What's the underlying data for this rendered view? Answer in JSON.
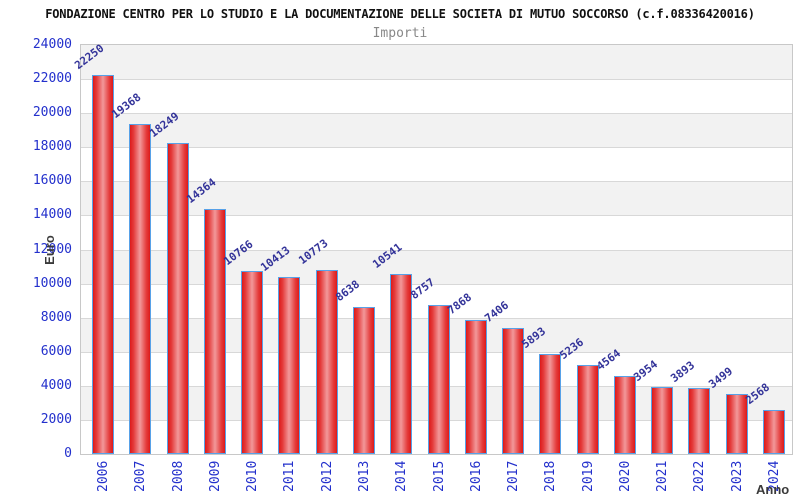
{
  "header": {
    "title": "FONDAZIONE CENTRO PER LO STUDIO E LA DOCUMENTAZIONE DELLE SOCIETA DI MUTUO SOCCORSO (c.f.08336420016)",
    "subtitle": "Importi"
  },
  "chart_data": {
    "type": "bar",
    "title": "Importi",
    "xlabel": "Anno",
    "ylabel": "Euro",
    "categories": [
      "2006",
      "2007",
      "2008",
      "2009",
      "2010",
      "2011",
      "2012",
      "2013",
      "2014",
      "2015",
      "2016",
      "2017",
      "2018",
      "2019",
      "2020",
      "2021",
      "2022",
      "2023",
      "2024"
    ],
    "values": [
      22250,
      19368,
      18249,
      14364,
      10766,
      10413,
      10773,
      8638,
      10541,
      8757,
      7868,
      7406,
      5893,
      5236,
      4564,
      3954,
      3893,
      3499,
      2568
    ],
    "ylim": [
      0,
      24000
    ],
    "ytick_step": 2000,
    "yticks": [
      0,
      2000,
      4000,
      6000,
      8000,
      10000,
      12000,
      14000,
      16000,
      18000,
      20000,
      22000,
      24000
    ],
    "grid": true,
    "legend": false,
    "value_labels": true,
    "bands": "alternating-horizontal",
    "colors": {
      "bar_edge": "#dd1a1a",
      "bar_center": "#f2989a",
      "bar_border": "#57a1e8",
      "tick_label": "#2330cc",
      "value_label": "#333399",
      "band": "#f2f2f2",
      "gridline": "#d8d8d8",
      "plot_border": "#c8c8c8",
      "title": "#111111",
      "subtitle": "#888888",
      "axis_title": "#3a3a3a",
      "background": "#ffffff"
    }
  }
}
